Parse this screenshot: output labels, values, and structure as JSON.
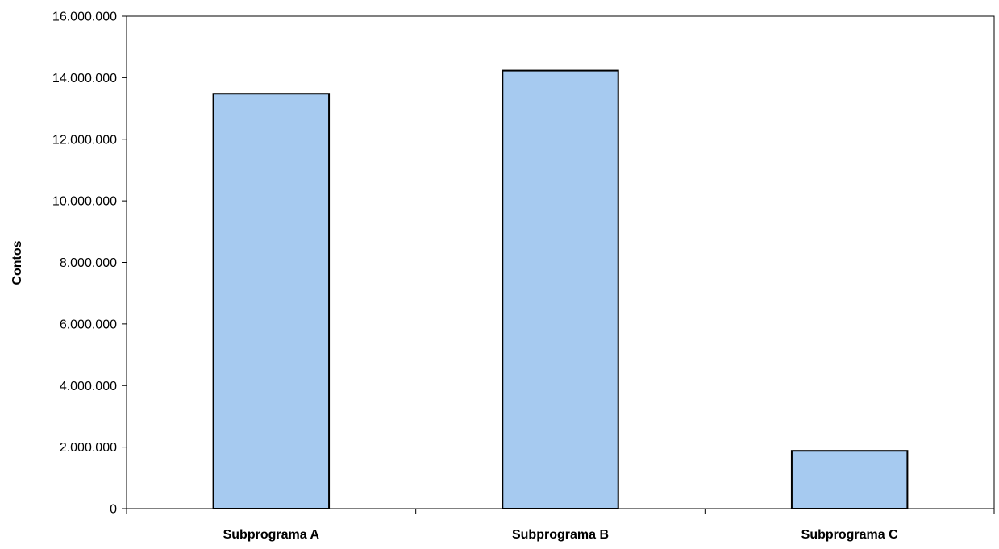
{
  "chart_data": {
    "type": "bar",
    "title": "",
    "xlabel": "",
    "ylabel": "Contos",
    "categories": [
      "Subprograma A",
      "Subprograma B",
      "Subprograma C"
    ],
    "values": [
      13480000,
      14230000,
      1880000
    ],
    "ylim": [
      0,
      16000000
    ],
    "yticks": [
      0,
      2000000,
      4000000,
      6000000,
      8000000,
      10000000,
      12000000,
      14000000,
      16000000
    ],
    "ytick_labels": [
      "0",
      "2.000.000",
      "4.000.000",
      "6.000.000",
      "8.000.000",
      "10.000.000",
      "12.000.000",
      "14.000.000",
      "16.000.000"
    ],
    "grid": false,
    "legend": "none",
    "colors": {
      "bar_fill": "#a6caf0",
      "bar_stroke": "#000000",
      "axis": "#000000"
    }
  }
}
